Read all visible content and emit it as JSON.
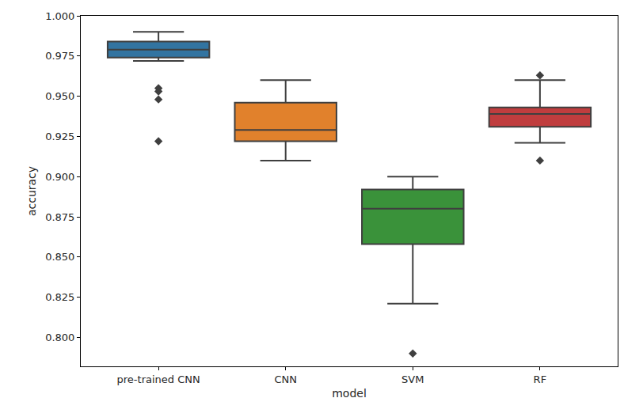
{
  "chart_data": {
    "type": "box",
    "x_label": "model",
    "y_label": "accuracy",
    "categories": [
      "pre-trained CNN",
      "CNN",
      "SVM",
      "RF"
    ],
    "series": [
      {
        "name": "pre-trained CNN",
        "color": "#3274a1",
        "lower_whisker": 0.972,
        "q1": 0.974,
        "median": 0.979,
        "q3": 0.984,
        "upper_whisker": 0.99,
        "outliers": [
          0.955,
          0.953,
          0.948,
          0.922
        ]
      },
      {
        "name": "CNN",
        "color": "#e1812c",
        "lower_whisker": 0.91,
        "q1": 0.922,
        "median": 0.929,
        "q3": 0.946,
        "upper_whisker": 0.96,
        "outliers": []
      },
      {
        "name": "SVM",
        "color": "#3a923a",
        "lower_whisker": 0.821,
        "q1": 0.858,
        "median": 0.88,
        "q3": 0.892,
        "upper_whisker": 0.9,
        "outliers": [
          0.79
        ]
      },
      {
        "name": "RF",
        "color": "#c03d3e",
        "lower_whisker": 0.921,
        "q1": 0.931,
        "median": 0.939,
        "q3": 0.943,
        "upper_whisker": 0.96,
        "outliers": [
          0.963,
          0.91
        ]
      }
    ],
    "marker": "diamond",
    "ylim": [
      0.782,
      1.0
    ],
    "yticks": [
      {
        "value": 0.8,
        "label": "0.800"
      },
      {
        "value": 0.825,
        "label": "0.825"
      },
      {
        "value": 0.85,
        "label": "0.850"
      },
      {
        "value": 0.875,
        "label": "0.875"
      },
      {
        "value": 0.9,
        "label": "0.900"
      },
      {
        "value": 0.925,
        "label": "0.925"
      },
      {
        "value": 0.95,
        "label": "0.950"
      },
      {
        "value": 0.975,
        "label": "0.975"
      },
      {
        "value": 1.0,
        "label": "1.000"
      }
    ],
    "grid": false
  }
}
